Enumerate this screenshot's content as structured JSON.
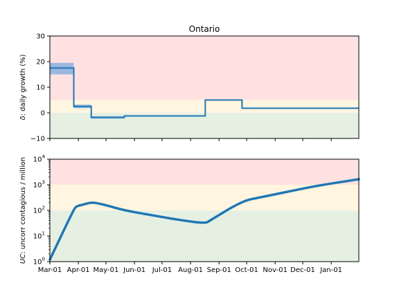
{
  "chart_data": [
    {
      "type": "line",
      "title": "Ontario",
      "ylabel_symbol": "δ",
      "ylabel_text": ": daily growth (%)",
      "xlabel": "",
      "ylim": [
        -10,
        30
      ],
      "yticks": [
        "−10",
        "0",
        "10",
        "20",
        "30"
      ],
      "ytick_values": [
        -10,
        0,
        10,
        20,
        30
      ],
      "xlim": [
        "2020-03-01",
        "2021-01-31"
      ],
      "grid": false,
      "bands": [
        {
          "from": 5,
          "to": 30,
          "color": "#ffe1e1"
        },
        {
          "from": 0,
          "to": 5,
          "color": "#fff5e0"
        },
        {
          "from": -10,
          "to": 0,
          "color": "#e5f0e3"
        }
      ],
      "series": [
        {
          "line_color": "#1f77b4",
          "band_color": "#8fb3e0",
          "step_segments": [
            {
              "start": "2020-03-01",
              "end": "2020-03-27",
              "value": 17.5,
              "low": 15,
              "high": 19.5
            },
            {
              "start": "2020-03-27",
              "end": "2020-04-15",
              "value": 2.5,
              "low": 1.8,
              "high": 3.2
            },
            {
              "start": "2020-04-15",
              "end": "2020-05-21",
              "value": -1.8,
              "low": -2.3,
              "high": -1.3
            },
            {
              "start": "2020-05-21",
              "end": "2020-08-17",
              "value": -1.2,
              "low": -1.4,
              "high": -1.0
            },
            {
              "start": "2020-08-17",
              "end": "2020-09-26",
              "value": 5.0,
              "low": 4.8,
              "high": 5.2
            },
            {
              "start": "2020-09-26",
              "end": "2021-01-31",
              "value": 1.8,
              "low": 1.7,
              "high": 1.9
            }
          ]
        }
      ]
    },
    {
      "type": "line",
      "title": "",
      "ylabel_symbol": "UC",
      "ylabel_text": ": uncorr contagious / million",
      "xlabel": "",
      "log_scale": true,
      "ylim": [
        1,
        10000
      ],
      "ytick_values": [
        1,
        10,
        100,
        1000,
        10000
      ],
      "ytick_exponents": [
        "0",
        "1",
        "2",
        "3",
        "4"
      ],
      "ytick_base": "10",
      "xlim": [
        "2020-03-01",
        "2021-01-31"
      ],
      "xticks": [
        "Mar-01",
        "Apr-01",
        "May-01",
        "Jun-01",
        "Jul-01",
        "Aug-01",
        "Sep-01",
        "Oct-01",
        "Nov-01",
        "Dec-01",
        "Jan-01"
      ],
      "xtick_dates": [
        "2020-03-01",
        "2020-04-01",
        "2020-05-01",
        "2020-06-01",
        "2020-07-01",
        "2020-08-01",
        "2020-09-01",
        "2020-10-01",
        "2020-11-01",
        "2020-12-01",
        "2021-01-01"
      ],
      "grid": false,
      "bands": [
        {
          "from": 1000,
          "to": 10000,
          "color": "#ffe1e1"
        },
        {
          "from": 100,
          "to": 1000,
          "color": "#fff5e0"
        },
        {
          "from": 1,
          "to": 100,
          "color": "#e5f0e3"
        }
      ],
      "series": [
        {
          "line_color": "#1f77b4",
          "points": [
            {
              "x": "2020-03-01",
              "y": 1.2
            },
            {
              "x": "2020-03-27",
              "y": 110
            },
            {
              "x": "2020-03-30",
              "y": 145
            },
            {
              "x": "2020-04-05",
              "y": 165
            },
            {
              "x": "2020-04-10",
              "y": 185
            },
            {
              "x": "2020-04-16",
              "y": 205
            },
            {
              "x": "2020-04-22",
              "y": 190
            },
            {
              "x": "2020-05-01",
              "y": 160
            },
            {
              "x": "2020-05-21",
              "y": 100
            },
            {
              "x": "2020-06-20",
              "y": 65
            },
            {
              "x": "2020-07-20",
              "y": 42
            },
            {
              "x": "2020-08-17",
              "y": 31
            },
            {
              "x": "2020-08-22",
              "y": 40
            },
            {
              "x": "2020-09-26",
              "y": 230
            },
            {
              "x": "2020-10-15",
              "y": 320
            },
            {
              "x": "2020-11-15",
              "y": 540
            },
            {
              "x": "2020-12-15",
              "y": 900
            },
            {
              "x": "2021-01-31",
              "y": 1650
            }
          ]
        }
      ]
    }
  ]
}
